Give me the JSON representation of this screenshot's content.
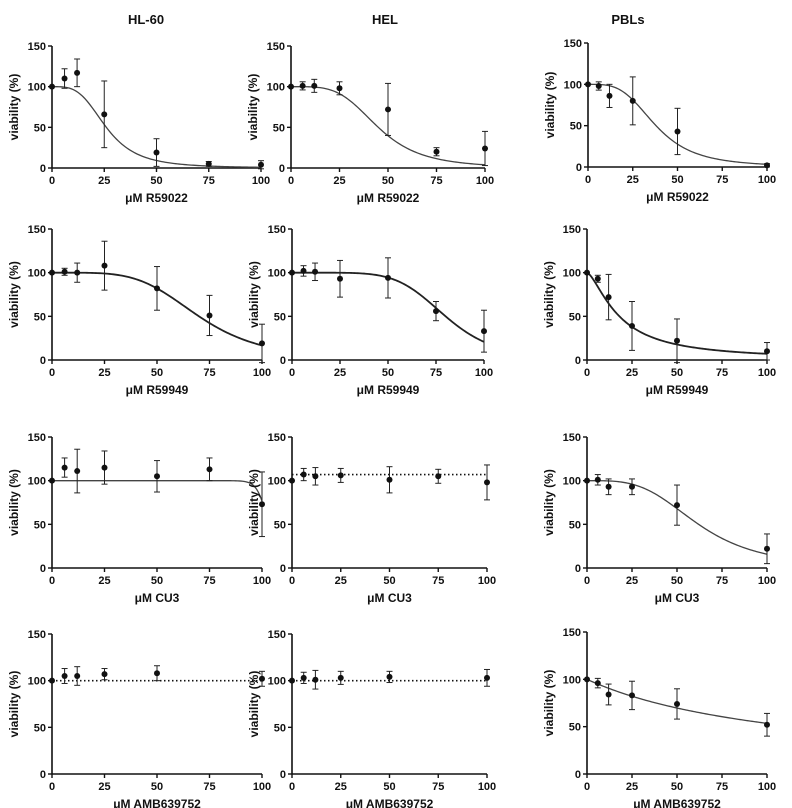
{
  "column_titles": [
    "HL-60",
    "HEL",
    "PBLs"
  ],
  "chart_data": [
    {
      "type": "scatter",
      "title": "HL-60",
      "xlabel": "μM R59022",
      "ylabel": "viability (%)",
      "xlim": [
        0,
        100
      ],
      "ylim": [
        0,
        150
      ],
      "xticks": [
        0,
        25,
        50,
        75,
        100
      ],
      "yticks": [
        0,
        50,
        100,
        150
      ],
      "fit": "sigmoid",
      "fit_style": "thin",
      "fit_params": {
        "top": 100,
        "bottom": 0,
        "ic50": 26,
        "hill": 3.5
      },
      "points": [
        {
          "x": 0,
          "y": 100,
          "err": 0
        },
        {
          "x": 6,
          "y": 110,
          "err": 12
        },
        {
          "x": 12,
          "y": 117,
          "err": 17
        },
        {
          "x": 25,
          "y": 66,
          "err": 41
        },
        {
          "x": 50,
          "y": 19,
          "err": 17
        },
        {
          "x": 75,
          "y": 5,
          "err": 3
        },
        {
          "x": 100,
          "y": 4,
          "err": 5
        }
      ]
    },
    {
      "type": "scatter",
      "title": "HEL",
      "xlabel": "μM R59022",
      "ylabel": "viability (%)",
      "xlim": [
        0,
        100
      ],
      "ylim": [
        0,
        150
      ],
      "xticks": [
        0,
        25,
        50,
        75,
        100
      ],
      "yticks": [
        0,
        50,
        100,
        150
      ],
      "fit": "sigmoid",
      "fit_style": "thin",
      "fit_params": {
        "top": 100,
        "bottom": 0,
        "ic50": 45,
        "hill": 4
      },
      "points": [
        {
          "x": 0,
          "y": 100,
          "err": 0
        },
        {
          "x": 6,
          "y": 101,
          "err": 5
        },
        {
          "x": 12,
          "y": 101,
          "err": 8
        },
        {
          "x": 25,
          "y": 98,
          "err": 8
        },
        {
          "x": 50,
          "y": 72,
          "err": 32
        },
        {
          "x": 75,
          "y": 20,
          "err": 5
        },
        {
          "x": 100,
          "y": 24,
          "err": 21
        }
      ]
    },
    {
      "type": "scatter",
      "title": "PBLs",
      "xlabel": "μM R59022",
      "ylabel": "viability (%)",
      "xlim": [
        0,
        100
      ],
      "ylim": [
        0,
        150
      ],
      "xticks": [
        0,
        25,
        50,
        75,
        100
      ],
      "yticks": [
        0,
        50,
        100,
        150
      ],
      "fit": "sigmoid",
      "fit_style": "thin",
      "fit_params": {
        "top": 100,
        "bottom": 0,
        "ic50": 38,
        "hill": 3.5
      },
      "points": [
        {
          "x": 0,
          "y": 100,
          "err": 0
        },
        {
          "x": 6,
          "y": 98,
          "err": 5
        },
        {
          "x": 12,
          "y": 86,
          "err": 14
        },
        {
          "x": 25,
          "y": 80,
          "err": 29
        },
        {
          "x": 50,
          "y": 43,
          "err": 28
        },
        {
          "x": 100,
          "y": 2,
          "err": 2
        }
      ]
    },
    {
      "type": "scatter",
      "title": "",
      "xlabel": "μM R59949",
      "ylabel": "viability (%)",
      "xlim": [
        0,
        100
      ],
      "ylim": [
        0,
        150
      ],
      "xticks": [
        0,
        25,
        50,
        75,
        100
      ],
      "yticks": [
        0,
        50,
        100,
        150
      ],
      "fit": "sigmoid",
      "fit_style": "thick",
      "fit_params": {
        "top": 100,
        "bottom": 0,
        "ic50": 70,
        "hill": 4.5
      },
      "points": [
        {
          "x": 0,
          "y": 100,
          "err": 0
        },
        {
          "x": 6,
          "y": 101,
          "err": 4
        },
        {
          "x": 12,
          "y": 100,
          "err": 11
        },
        {
          "x": 25,
          "y": 108,
          "err": 28
        },
        {
          "x": 50,
          "y": 82,
          "err": 25
        },
        {
          "x": 75,
          "y": 51,
          "err": 23
        },
        {
          "x": 100,
          "y": 19,
          "err": 22
        }
      ]
    },
    {
      "type": "scatter",
      "title": "",
      "xlabel": "μM R59949",
      "ylabel": "viability (%)",
      "xlim": [
        0,
        100
      ],
      "ylim": [
        0,
        150
      ],
      "xticks": [
        0,
        25,
        50,
        75,
        100
      ],
      "yticks": [
        0,
        50,
        100,
        150
      ],
      "fit": "sigmoid",
      "fit_style": "thick",
      "fit_params": {
        "top": 100,
        "bottom": 0,
        "ic50": 80,
        "hill": 6
      },
      "points": [
        {
          "x": 0,
          "y": 100,
          "err": 0
        },
        {
          "x": 6,
          "y": 102,
          "err": 6
        },
        {
          "x": 12,
          "y": 101,
          "err": 10
        },
        {
          "x": 25,
          "y": 93,
          "err": 21
        },
        {
          "x": 50,
          "y": 94,
          "err": 23
        },
        {
          "x": 75,
          "y": 56,
          "err": 11
        },
        {
          "x": 100,
          "y": 33,
          "err": 24
        }
      ]
    },
    {
      "type": "scatter",
      "title": "",
      "xlabel": "μM R59949",
      "ylabel": "viability (%)",
      "xlim": [
        0,
        100
      ],
      "ylim": [
        0,
        150
      ],
      "xticks": [
        0,
        25,
        50,
        75,
        100
      ],
      "yticks": [
        0,
        50,
        100,
        150
      ],
      "fit": "sigmoid",
      "fit_style": "thick",
      "fit_params": {
        "top": 100,
        "bottom": 0,
        "ic50": 18,
        "hill": 1.5
      },
      "points": [
        {
          "x": 0,
          "y": 100,
          "err": 0
        },
        {
          "x": 6,
          "y": 93,
          "err": 4
        },
        {
          "x": 12,
          "y": 72,
          "err": 26
        },
        {
          "x": 25,
          "y": 39,
          "err": 28
        },
        {
          "x": 50,
          "y": 22,
          "err": 25
        },
        {
          "x": 100,
          "y": 10,
          "err": 10
        }
      ]
    },
    {
      "type": "scatter",
      "title": "",
      "xlabel": "μM CU3",
      "ylabel": "viability (%)",
      "xlim": [
        0,
        100
      ],
      "ylim": [
        0,
        150
      ],
      "xticks": [
        0,
        25,
        50,
        75,
        100
      ],
      "yticks": [
        0,
        50,
        100,
        150
      ],
      "fit": "sigmoid",
      "fit_style": "thin",
      "fit_params": {
        "top": 100,
        "bottom": 0,
        "ic50": 103,
        "hill": 40
      },
      "points": [
        {
          "x": 0,
          "y": 100,
          "err": 0
        },
        {
          "x": 6,
          "y": 115,
          "err": 11
        },
        {
          "x": 12,
          "y": 111,
          "err": 25
        },
        {
          "x": 25,
          "y": 115,
          "err": 19
        },
        {
          "x": 50,
          "y": 105,
          "err": 18
        },
        {
          "x": 75,
          "y": 113,
          "err": 13
        },
        {
          "x": 100,
          "y": 73,
          "err": 37
        }
      ]
    },
    {
      "type": "scatter",
      "title": "",
      "xlabel": "μM CU3",
      "ylabel": "viability (%)",
      "xlim": [
        0,
        100
      ],
      "ylim": [
        0,
        150
      ],
      "xticks": [
        0,
        25,
        50,
        75,
        100
      ],
      "yticks": [
        0,
        50,
        100,
        150
      ],
      "fit": "flat",
      "fit_style": "dotted",
      "fit_params": {
        "level": 107
      },
      "points": [
        {
          "x": 0,
          "y": 100,
          "err": 0
        },
        {
          "x": 6,
          "y": 107,
          "err": 7
        },
        {
          "x": 12,
          "y": 105,
          "err": 10
        },
        {
          "x": 25,
          "y": 106,
          "err": 8
        },
        {
          "x": 50,
          "y": 101,
          "err": 15
        },
        {
          "x": 75,
          "y": 105,
          "err": 8
        },
        {
          "x": 100,
          "y": 98,
          "err": 20
        }
      ]
    },
    {
      "type": "scatter",
      "title": "",
      "xlabel": "μM CU3",
      "ylabel": "viability (%)",
      "xlim": [
        0,
        100
      ],
      "ylim": [
        0,
        150
      ],
      "xticks": [
        0,
        25,
        50,
        75,
        100
      ],
      "yticks": [
        0,
        50,
        100,
        150
      ],
      "fit": "sigmoid",
      "fit_style": "thin",
      "fit_params": {
        "top": 100,
        "bottom": 0,
        "ic50": 62,
        "hill": 3.5
      },
      "points": [
        {
          "x": 0,
          "y": 100,
          "err": 0
        },
        {
          "x": 6,
          "y": 101,
          "err": 6
        },
        {
          "x": 12,
          "y": 93,
          "err": 9
        },
        {
          "x": 25,
          "y": 93,
          "err": 9
        },
        {
          "x": 50,
          "y": 72,
          "err": 23
        },
        {
          "x": 100,
          "y": 22,
          "err": 17
        }
      ]
    },
    {
      "type": "scatter",
      "title": "",
      "xlabel": "μM AMB639752",
      "ylabel": "viability (%)",
      "xlim": [
        0,
        100
      ],
      "ylim": [
        0,
        150
      ],
      "xticks": [
        0,
        25,
        50,
        75,
        100
      ],
      "yticks": [
        0,
        50,
        100,
        150
      ],
      "fit": "flat",
      "fit_style": "dotted",
      "fit_params": {
        "level": 100
      },
      "points": [
        {
          "x": 0,
          "y": 100,
          "err": 0
        },
        {
          "x": 6,
          "y": 105,
          "err": 8
        },
        {
          "x": 12,
          "y": 105,
          "err": 10
        },
        {
          "x": 25,
          "y": 107,
          "err": 6
        },
        {
          "x": 50,
          "y": 108,
          "err": 8
        },
        {
          "x": 100,
          "y": 102,
          "err": 8
        }
      ]
    },
    {
      "type": "scatter",
      "title": "",
      "xlabel": "μM AMB639752",
      "ylabel": "viability (%)",
      "xlim": [
        0,
        100
      ],
      "ylim": [
        0,
        150
      ],
      "xticks": [
        0,
        25,
        50,
        75,
        100
      ],
      "yticks": [
        0,
        50,
        100,
        150
      ],
      "fit": "flat",
      "fit_style": "dotted",
      "fit_params": {
        "level": 100
      },
      "points": [
        {
          "x": 0,
          "y": 100,
          "err": 0
        },
        {
          "x": 6,
          "y": 103,
          "err": 6
        },
        {
          "x": 12,
          "y": 101,
          "err": 10
        },
        {
          "x": 25,
          "y": 103,
          "err": 7
        },
        {
          "x": 50,
          "y": 104,
          "err": 6
        },
        {
          "x": 100,
          "y": 103,
          "err": 9
        }
      ]
    },
    {
      "type": "scatter",
      "title": "",
      "xlabel": "μM AMB639752",
      "ylabel": "viability (%)",
      "xlim": [
        0,
        100
      ],
      "ylim": [
        0,
        150
      ],
      "xticks": [
        0,
        25,
        50,
        75,
        100
      ],
      "yticks": [
        0,
        50,
        100,
        150
      ],
      "fit": "sigmoid",
      "fit_style": "thin",
      "fit_params": {
        "top": 100,
        "bottom": 0,
        "ic50": 115,
        "hill": 1
      },
      "points": [
        {
          "x": 0,
          "y": 100,
          "err": 0
        },
        {
          "x": 6,
          "y": 96,
          "err": 5
        },
        {
          "x": 12,
          "y": 84,
          "err": 11
        },
        {
          "x": 25,
          "y": 83,
          "err": 15
        },
        {
          "x": 50,
          "y": 74,
          "err": 16
        },
        {
          "x": 100,
          "y": 52,
          "err": 12
        }
      ]
    }
  ]
}
